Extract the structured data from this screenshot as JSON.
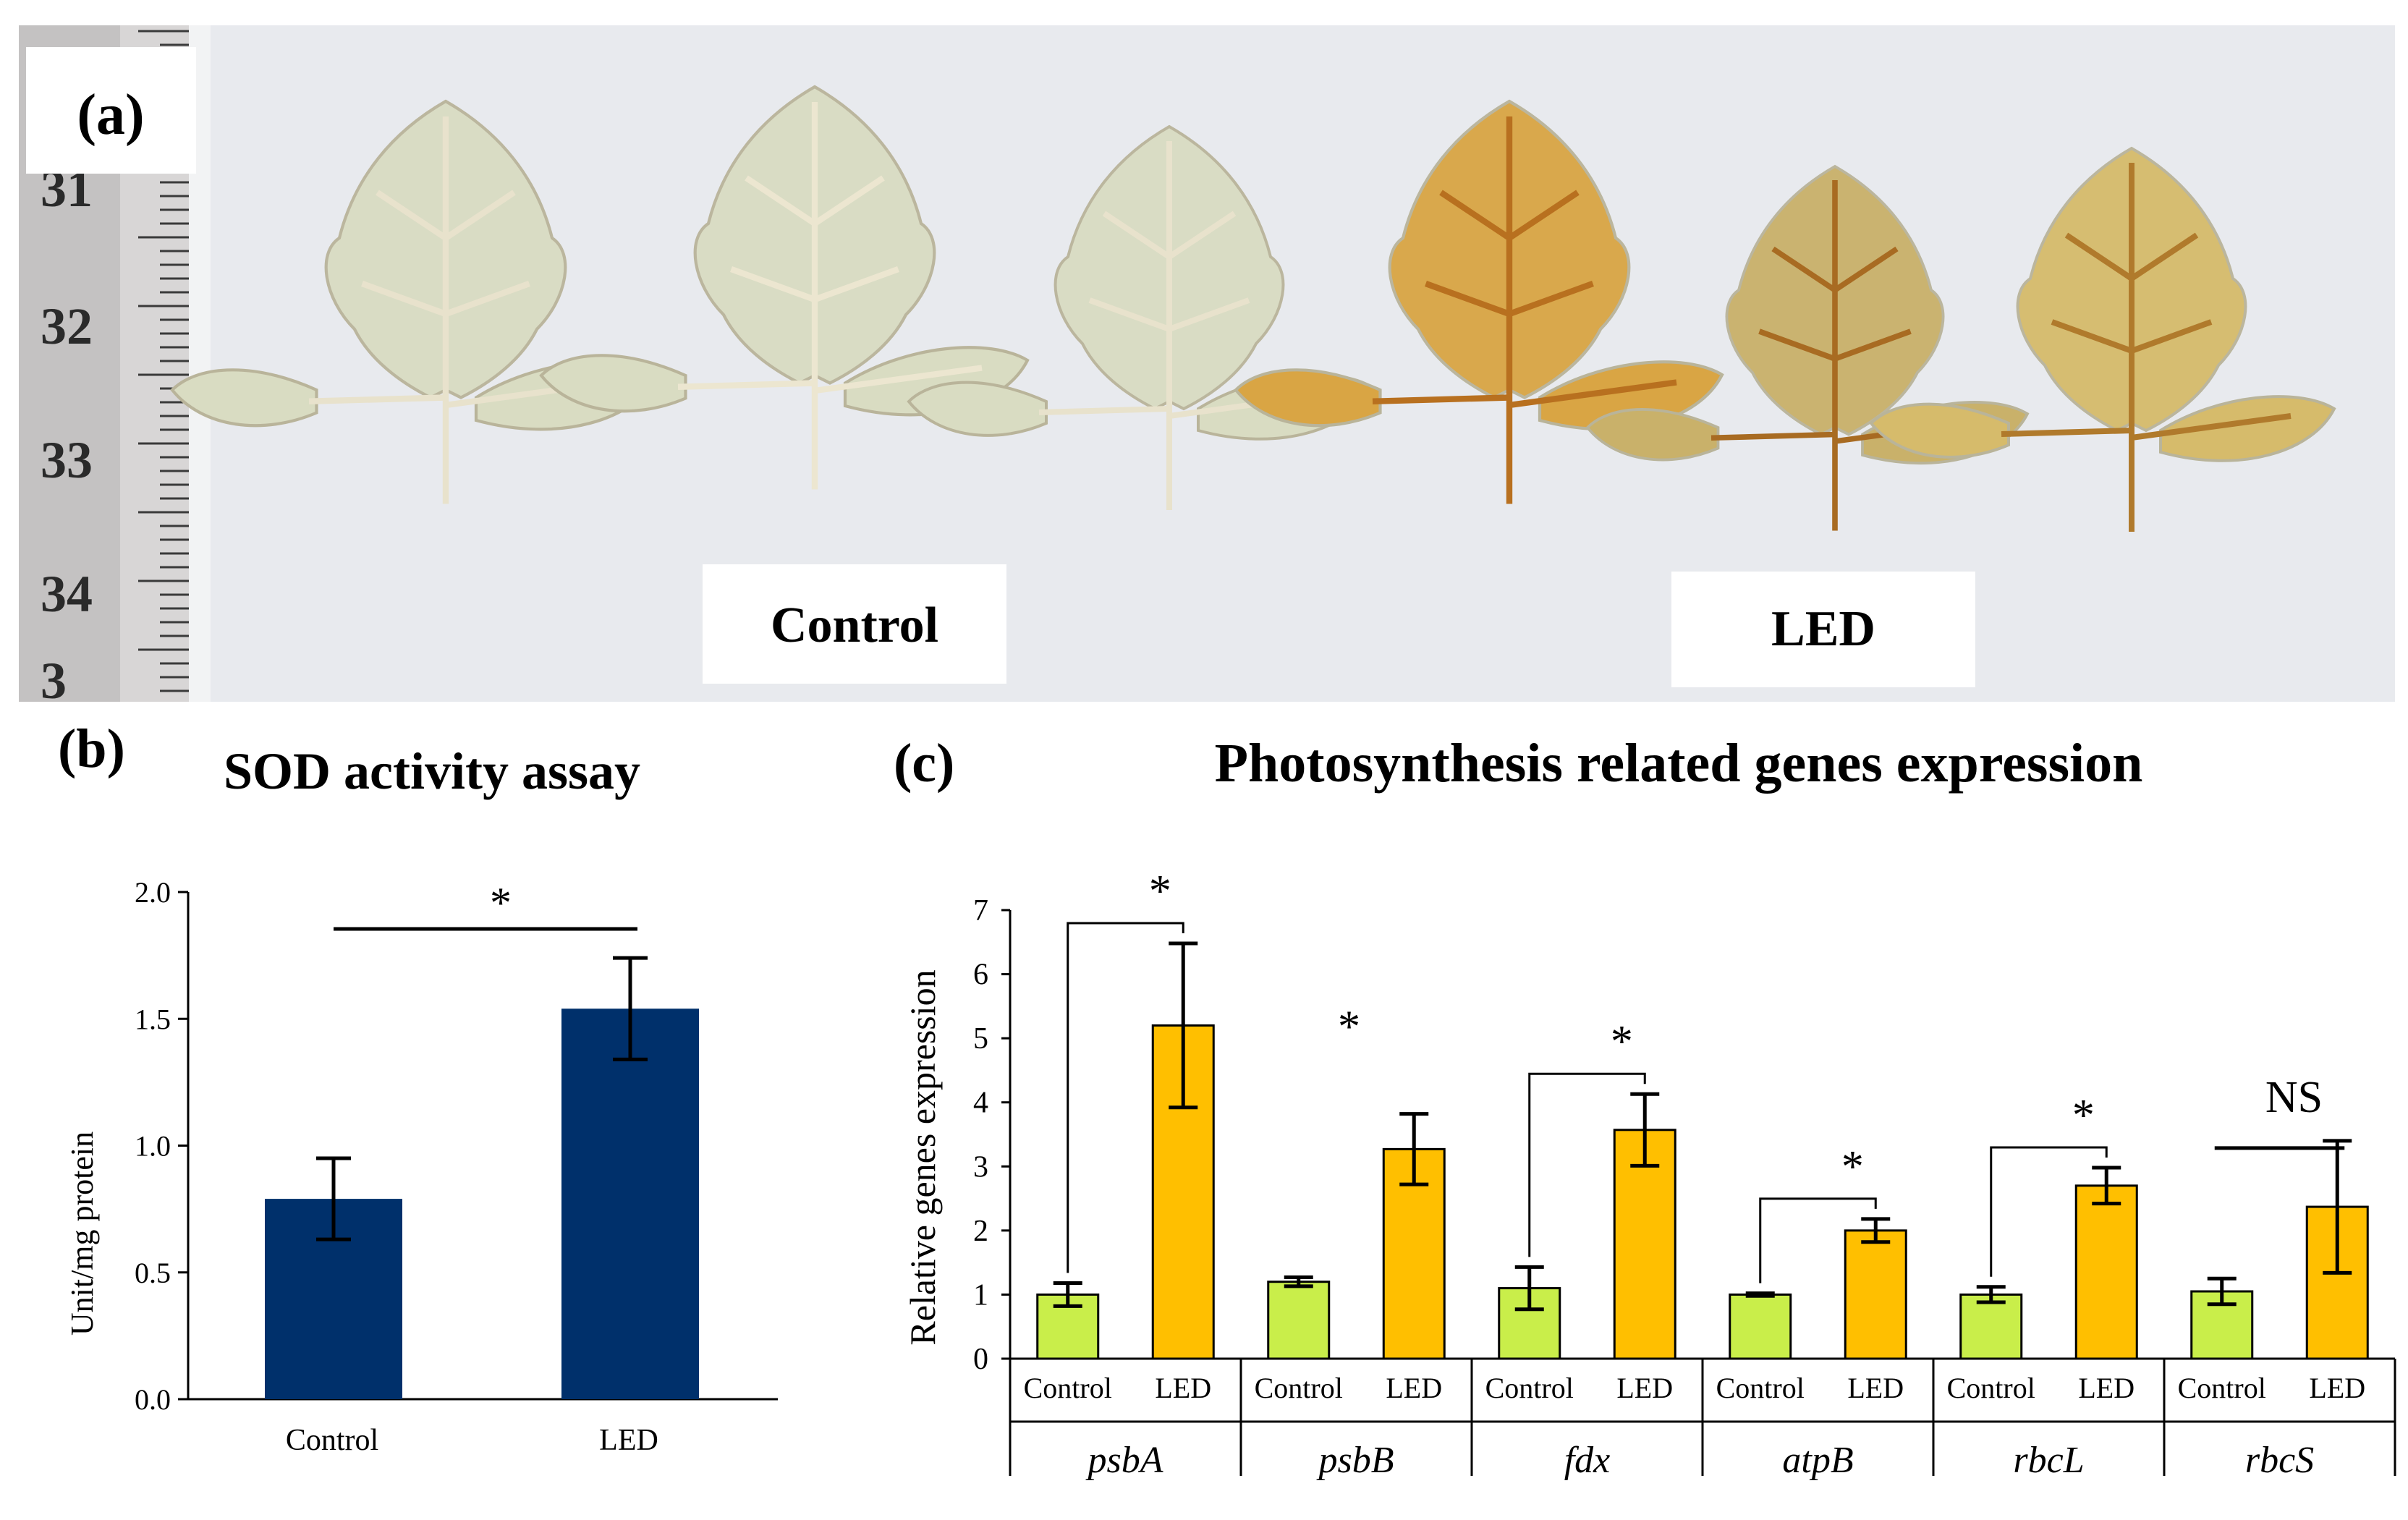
{
  "panel_a": {
    "label": "(a)",
    "groups": [
      "Control",
      "LED"
    ],
    "ruler_numbers": [
      "31",
      "32",
      "33",
      "34",
      "3"
    ],
    "colors": {
      "control_leaf": "#d9dcc2",
      "led_leaf": "#d9a544",
      "background": "#e6e8ec"
    }
  },
  "panel_b": {
    "label": "(b)"
  },
  "panel_c": {
    "label": "(c)"
  },
  "chart_data": [
    {
      "type": "bar",
      "title": "SOD activity assay",
      "xlabel": "",
      "ylabel": "Unit/mg protein",
      "categories": [
        "Control",
        "LED"
      ],
      "values": [
        0.79,
        1.54
      ],
      "errors": [
        0.16,
        0.2
      ],
      "ylim": [
        0,
        2
      ],
      "yticks": [
        "0.0",
        "0.5",
        "1.0",
        "1.5",
        "2.0"
      ],
      "color": "#00306b",
      "significance": [
        {
          "from": 0,
          "to": 1,
          "label": "*"
        }
      ]
    },
    {
      "type": "bar",
      "title": "Photosynthesis related genes expression",
      "ylabel": "Relative genes expression",
      "ylim": [
        0,
        7
      ],
      "yticks": [
        "0",
        "1",
        "2",
        "3",
        "4",
        "5",
        "6",
        "7"
      ],
      "conditions": [
        "Control",
        "LED"
      ],
      "colors": {
        "Control": "#c9ee4a",
        "LED": "#ffbf00"
      },
      "genes": [
        {
          "name": "psbA",
          "values": [
            1.0,
            5.2
          ],
          "errors": [
            0.18,
            1.28
          ],
          "sig": "*",
          "bracket": true
        },
        {
          "name": "psbB",
          "values": [
            1.2,
            3.27
          ],
          "errors": [
            0.07,
            0.55
          ],
          "sig": "*",
          "bracket": false
        },
        {
          "name": "fdx",
          "values": [
            1.1,
            3.57
          ],
          "errors": [
            0.33,
            0.56
          ],
          "sig": "*",
          "bracket": true
        },
        {
          "name": "atpB",
          "values": [
            1.0,
            2.0
          ],
          "errors": [
            0.02,
            0.18
          ],
          "sig": "*",
          "bracket": true
        },
        {
          "name": "rbcL",
          "values": [
            1.0,
            2.7
          ],
          "errors": [
            0.12,
            0.28
          ],
          "sig": "*",
          "bracket": true
        },
        {
          "name": "rbcS",
          "values": [
            1.05,
            2.37
          ],
          "errors": [
            0.2,
            1.03
          ],
          "sig": "NS",
          "bracket": "line"
        }
      ]
    }
  ]
}
